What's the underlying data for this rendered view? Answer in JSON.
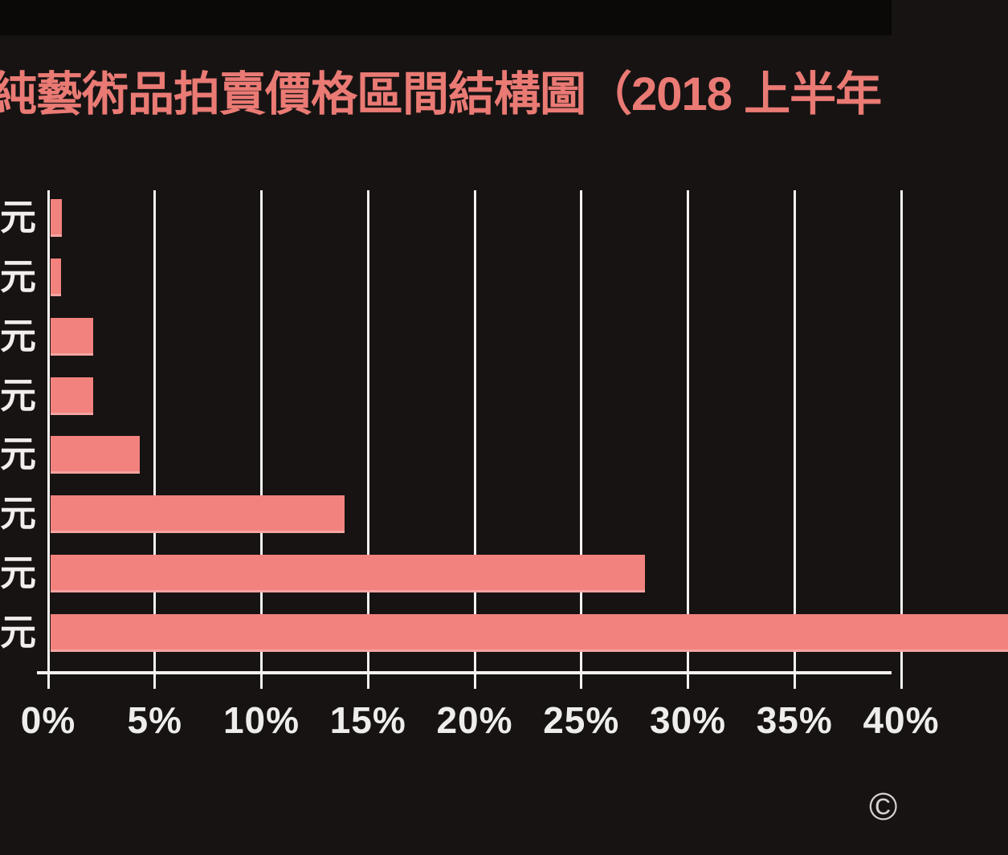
{
  "page": {
    "copyright_symbol": "©"
  },
  "chart_data": {
    "type": "bar",
    "orientation": "horizontal",
    "title": "純藝術品拍賣價格區間結構圖（2018 上半年",
    "title_truncated_at_edges": true,
    "categories": [
      "元",
      "元",
      "元",
      "元",
      "元",
      "元",
      "元",
      "元"
    ],
    "y_labels_truncated_at_left_edge": true,
    "values": [
      0.65,
      0.6,
      2.1,
      2.1,
      4.3,
      13.9,
      28.0,
      45.0
    ],
    "last_bar_clipped_at_right_edge": true,
    "xticks": [
      "0%",
      "5%",
      "10%",
      "15%",
      "20%",
      "25%",
      "30%",
      "35%",
      "40%"
    ],
    "xtick_step_pct": 5,
    "xlim": [
      0,
      40
    ],
    "grid": true,
    "legend": false,
    "colors": {
      "bar": "#f2827d",
      "title": "#ea7a74",
      "axis": "#f5f2f2",
      "gridline": "#f4f1f1",
      "tick_label": "#efecec",
      "category_label": "#f2eeee",
      "background": "#171313"
    }
  }
}
